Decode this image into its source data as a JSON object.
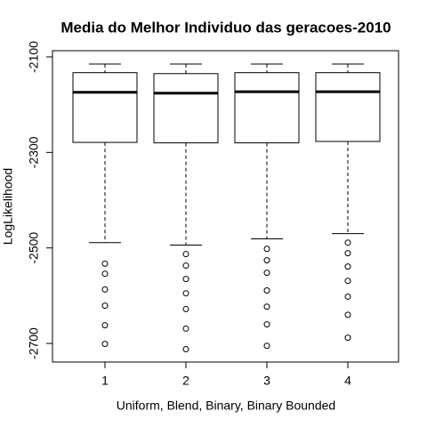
{
  "chart_data": {
    "type": "box",
    "title": "Media do Melhor Individuo das geracoes-2010",
    "xlabel": "Uniform, Blend, Binary, Binary Bounded",
    "ylabel": "LogLikelihood",
    "categories": [
      "1",
      "2",
      "3",
      "4"
    ],
    "ylim": [
      -2739,
      -2087
    ],
    "yticks": [
      -2100,
      -2300,
      -2500,
      -2700
    ],
    "boxes": [
      {
        "whishi": -2115,
        "q3": -2133,
        "med": -2174,
        "q1": -2279,
        "whislo": -2489,
        "fliers": [
          -2533,
          -2554,
          -2587,
          -2621,
          -2662,
          -2701
        ]
      },
      {
        "whishi": -2115,
        "q3": -2135,
        "med": -2176,
        "q1": -2280,
        "whislo": -2494,
        "fliers": [
          -2513,
          -2537,
          -2565,
          -2595,
          -2628,
          -2669,
          -2712
        ]
      },
      {
        "whishi": -2115,
        "q3": -2133,
        "med": -2173,
        "q1": -2280,
        "whislo": -2481,
        "fliers": [
          -2502,
          -2526,
          -2552,
          -2589,
          -2623,
          -2660,
          -2705
        ]
      },
      {
        "whishi": -2115,
        "q3": -2133,
        "med": -2173,
        "q1": -2277,
        "whislo": -2470,
        "fliers": [
          -2489,
          -2511,
          -2539,
          -2569,
          -2602,
          -2640,
          -2688
        ]
      }
    ]
  }
}
